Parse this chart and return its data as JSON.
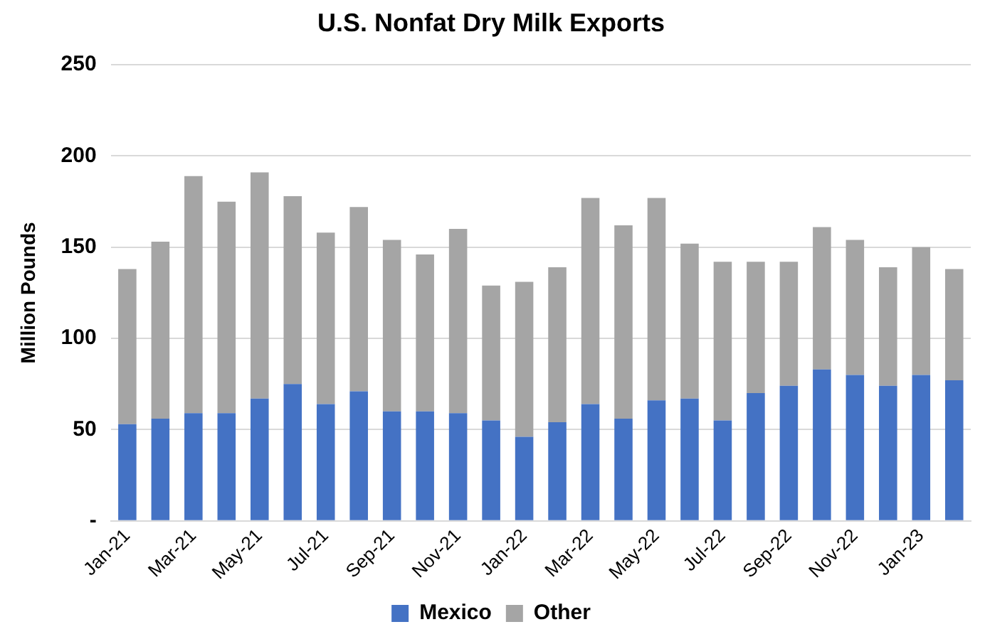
{
  "chart_data": {
    "type": "bar",
    "title": "U.S. Nonfat Dry Milk Exports",
    "ylabel": "Million Pounds",
    "categories": [
      "Jan-21",
      null,
      "Mar-21",
      null,
      "May-21",
      null,
      "Jul-21",
      null,
      "Sep-21",
      null,
      "Nov-21",
      null,
      "Jan-22",
      null,
      "Mar-22",
      null,
      "May-22",
      null,
      "Jul-22",
      null,
      "Sep-22",
      null,
      "Nov-22",
      null,
      "Jan-23",
      null
    ],
    "series": [
      {
        "name": "Mexico",
        "color": "#4472c4",
        "values": [
          53,
          56,
          59,
          59,
          67,
          75,
          64,
          71,
          60,
          60,
          59,
          55,
          46,
          54,
          64,
          56,
          66,
          67,
          55,
          70,
          74,
          83,
          80,
          74,
          80,
          77
        ]
      },
      {
        "name": "Other",
        "color": "#a5a5a5",
        "values": [
          85,
          97,
          130,
          116,
          124,
          103,
          94,
          101,
          94,
          86,
          101,
          74,
          85,
          85,
          113,
          106,
          111,
          85,
          87,
          72,
          68,
          78,
          74,
          65,
          70,
          61
        ]
      }
    ],
    "stacked": true,
    "ylim": [
      0,
      250
    ],
    "yticks": [
      {
        "value": 0,
        "label": "-"
      },
      50,
      100,
      150,
      200,
      250
    ],
    "grid": "y",
    "legend": "bottom"
  }
}
